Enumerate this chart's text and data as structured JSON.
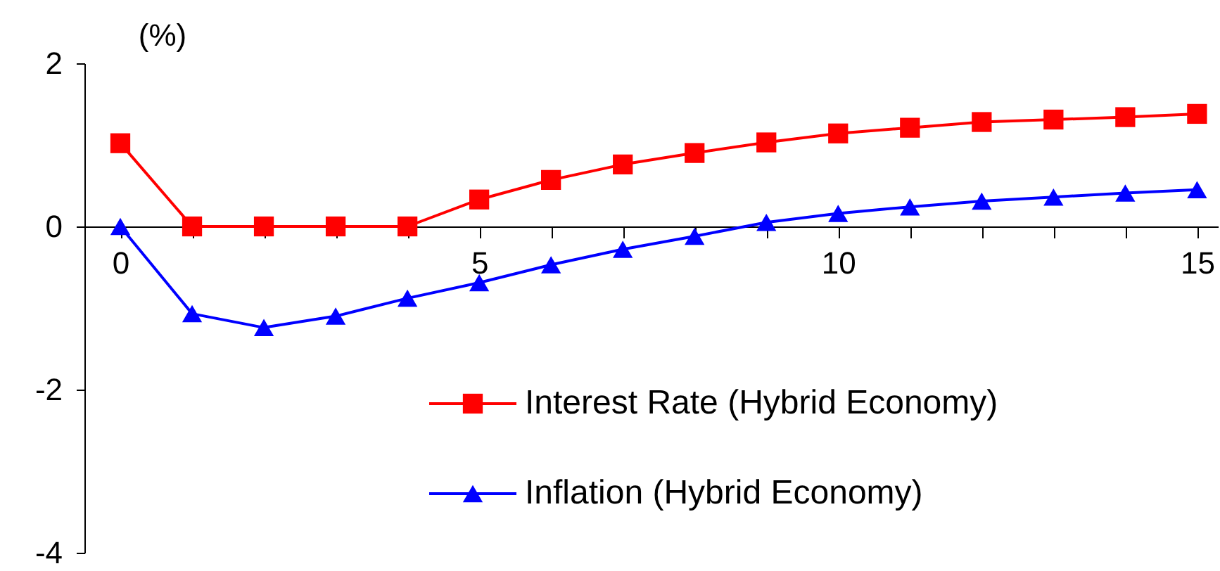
{
  "chart_data": {
    "type": "line",
    "ylabel": "(%)",
    "x": [
      0,
      1,
      2,
      3,
      4,
      5,
      6,
      7,
      8,
      9,
      10,
      11,
      12,
      13,
      14,
      15
    ],
    "series": [
      {
        "name": "Interest Rate (Hybrid Economy)",
        "color": "#ff0000",
        "marker": "square",
        "values": [
          1.02,
          0,
          0,
          0,
          0,
          0.33,
          0.57,
          0.76,
          0.9,
          1.03,
          1.14,
          1.21,
          1.28,
          1.31,
          1.34,
          1.38
        ]
      },
      {
        "name": "Inflation (Hybrid Economy)",
        "color": "#0000ff",
        "marker": "triangle",
        "values": [
          0,
          -1.07,
          -1.24,
          -1.1,
          -0.88,
          -0.69,
          -0.47,
          -0.28,
          -0.12,
          0.05,
          0.16,
          0.24,
          0.31,
          0.36,
          0.41,
          0.45
        ]
      }
    ],
    "xlim": [
      -0.5,
      15.3
    ],
    "xticks": [
      0,
      {
        "value": 1,
        "label": null
      },
      {
        "value": 2,
        "label": null
      },
      {
        "value": 3,
        "label": null
      },
      {
        "value": 4,
        "label": null
      },
      5,
      {
        "value": 6,
        "label": null
      },
      {
        "value": 7,
        "label": null
      },
      {
        "value": 8,
        "label": null
      },
      {
        "value": 9,
        "label": null
      },
      10,
      {
        "value": 11,
        "label": null
      },
      {
        "value": 12,
        "label": null
      },
      {
        "value": 13,
        "label": null
      },
      {
        "value": 14,
        "label": null
      },
      15
    ],
    "ylim": [
      -4,
      2
    ],
    "yticks": [
      -4,
      -2,
      0,
      2
    ],
    "grid": false,
    "legend": "bottom right",
    "line_style": "solid"
  }
}
